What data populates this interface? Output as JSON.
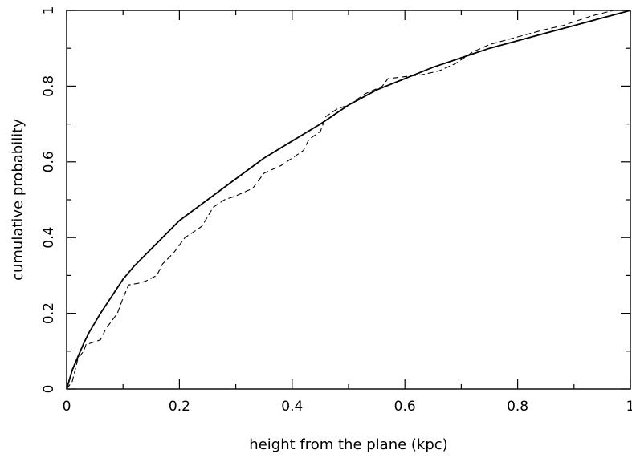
{
  "chart_data": {
    "type": "line",
    "title": "",
    "xlabel": "height from the plane (kpc)",
    "ylabel": "cumulative probability",
    "xlim": [
      0,
      1
    ],
    "ylim": [
      0,
      1
    ],
    "x_ticks": [
      "0",
      "0.2",
      "0.4",
      "0.6",
      "0.8",
      "1"
    ],
    "y_ticks": [
      "0",
      "0.2",
      "0.4",
      "0.6",
      "0.8",
      "1"
    ],
    "grid": false,
    "legend": "none",
    "series": [
      {
        "style": "solid",
        "color": "#000000",
        "x": [
          0,
          0.01,
          0.02,
          0.03,
          0.04,
          0.05,
          0.06,
          0.08,
          0.1,
          0.12,
          0.15,
          0.18,
          0.2,
          0.25,
          0.3,
          0.35,
          0.4,
          0.45,
          0.5,
          0.55,
          0.6,
          0.65,
          0.7,
          0.75,
          0.8,
          0.85,
          0.9,
          0.95,
          1.0
        ],
        "y": [
          0,
          0.05,
          0.085,
          0.12,
          0.15,
          0.175,
          0.2,
          0.245,
          0.29,
          0.325,
          0.37,
          0.415,
          0.445,
          0.5,
          0.555,
          0.61,
          0.655,
          0.7,
          0.75,
          0.79,
          0.82,
          0.85,
          0.875,
          0.9,
          0.92,
          0.94,
          0.96,
          0.98,
          1.0
        ]
      },
      {
        "style": "dashed",
        "color": "#000000",
        "x": [
          0,
          0.01,
          0.015,
          0.02,
          0.03,
          0.035,
          0.04,
          0.05,
          0.06,
          0.07,
          0.08,
          0.09,
          0.1,
          0.11,
          0.13,
          0.14,
          0.16,
          0.17,
          0.19,
          0.2,
          0.21,
          0.23,
          0.24,
          0.26,
          0.28,
          0.3,
          0.33,
          0.35,
          0.38,
          0.41,
          0.42,
          0.43,
          0.45,
          0.46,
          0.48,
          0.5,
          0.53,
          0.56,
          0.57,
          0.6,
          0.63,
          0.66,
          0.69,
          0.72,
          0.75,
          0.8,
          0.85,
          0.88,
          0.9,
          0.93,
          0.97,
          1.0
        ],
        "y": [
          0,
          0.02,
          0.05,
          0.08,
          0.1,
          0.12,
          0.12,
          0.125,
          0.13,
          0.16,
          0.18,
          0.2,
          0.24,
          0.275,
          0.28,
          0.285,
          0.3,
          0.33,
          0.36,
          0.38,
          0.4,
          0.42,
          0.43,
          0.48,
          0.5,
          0.51,
          0.53,
          0.57,
          0.59,
          0.62,
          0.63,
          0.66,
          0.68,
          0.72,
          0.74,
          0.75,
          0.78,
          0.8,
          0.82,
          0.825,
          0.83,
          0.84,
          0.86,
          0.89,
          0.91,
          0.93,
          0.95,
          0.96,
          0.97,
          0.985,
          1.0,
          1.0
        ]
      }
    ]
  }
}
